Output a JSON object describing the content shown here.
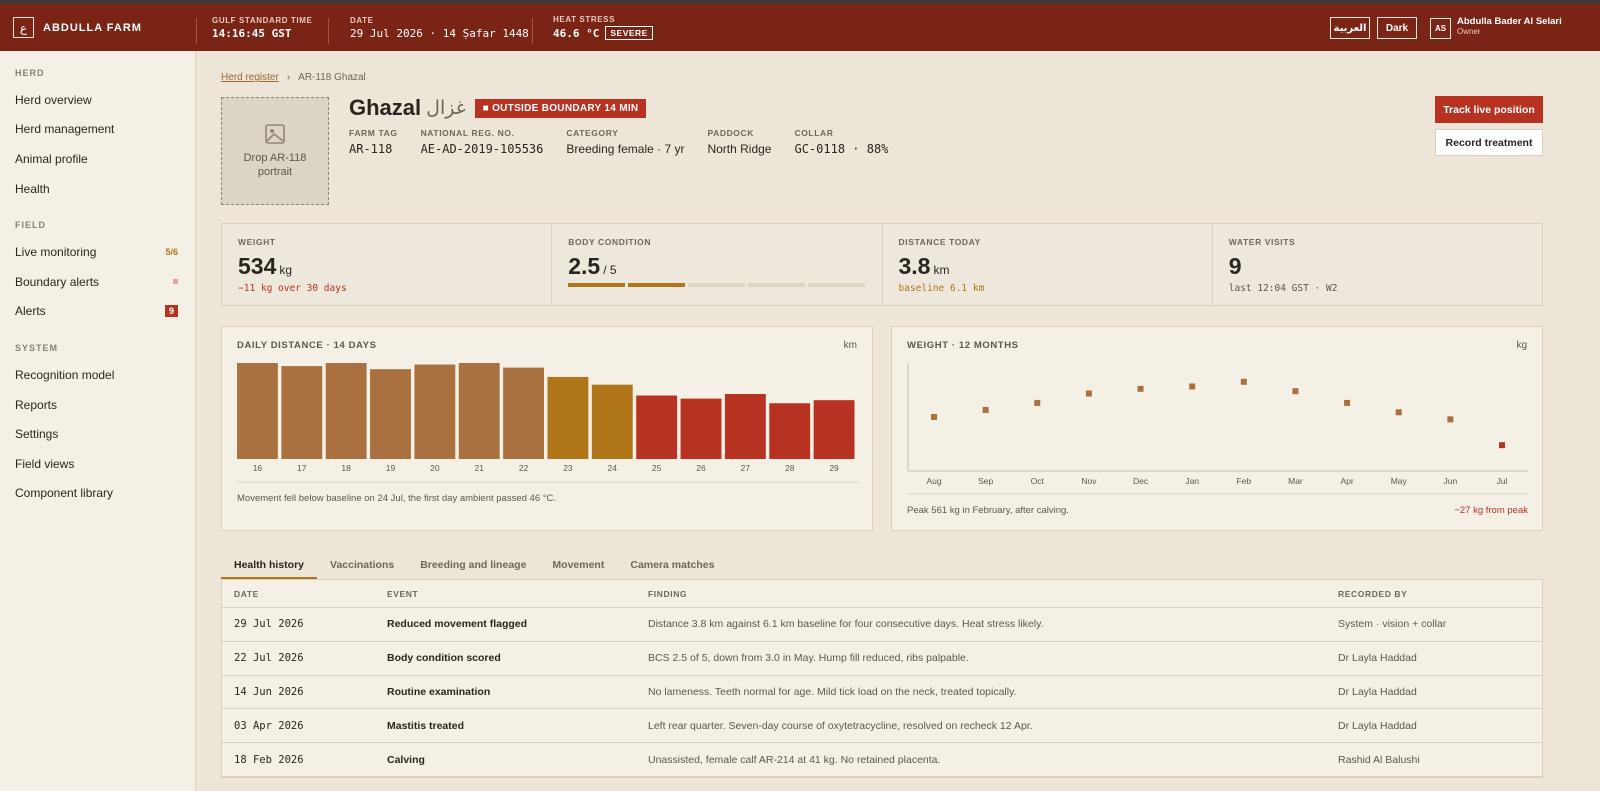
{
  "header": {
    "logo": "ع",
    "farm": "ABDULLA FARM",
    "time_label": "GULF STANDARD TIME",
    "time": "14:16:45 GST",
    "date_label": "DATE",
    "date": "29 Jul 2026 · 14 Ṣafar 1448",
    "heat_label": "HEAT STRESS",
    "heat": "46.6 °C",
    "heat_badge": "SEVERE",
    "language": "العربية",
    "theme": "Dark",
    "avatar": "AS",
    "user": "Abdulla Bader Al Selari",
    "role": "Owner"
  },
  "sidebar": [
    {
      "title": "HERD",
      "items": [
        {
          "label": "Herd overview"
        },
        {
          "label": "Herd management"
        },
        {
          "label": "Animal profile"
        },
        {
          "label": "Health"
        }
      ]
    },
    {
      "title": "FIELD",
      "items": [
        {
          "label": "Live monitoring",
          "badge": "5/6"
        },
        {
          "label": "Boundary alerts"
        },
        {
          "label": "Alerts",
          "badge": "9"
        }
      ]
    },
    {
      "title": "SYSTEM",
      "items": [
        {
          "label": "Recognition model"
        },
        {
          "label": "Reports"
        },
        {
          "label": "Settings"
        },
        {
          "label": "Field views"
        },
        {
          "label": "Component library"
        }
      ]
    }
  ],
  "breadcrumb": [
    "Herd register",
    "AR-118 Ghazal"
  ],
  "portrait": "Drop AR-118 portrait",
  "animal": {
    "name": "Ghazal",
    "name_ar": "غزال",
    "badge": "OUTSIDE BOUNDARY 14 MIN",
    "fields": [
      {
        "label": "FARM TAG",
        "value": "AR-118"
      },
      {
        "label": "NATIONAL REG. NO.",
        "value": "AE-AD-2019-105536"
      },
      {
        "label": "CATEGORY",
        "value": "Breeding female · 7 yr"
      },
      {
        "label": "PADDOCK",
        "value": "North Ridge"
      },
      {
        "label": "COLLAR",
        "value": "GC-0118 · 88%"
      }
    ]
  },
  "actions": [
    "Track live position",
    "Record treatment"
  ],
  "stats": [
    {
      "label": "WEIGHT",
      "value": 534,
      "unit": "kg",
      "note": "−11 kg over 30 days"
    },
    {
      "label": "BODY CONDITION",
      "value": 2.5,
      "unit": "/ 5",
      "max": 5
    },
    {
      "label": "DISTANCE TODAY",
      "value": 3.8,
      "unit": "km",
      "note": "baseline 6.1 km"
    },
    {
      "label": "WATER VISITS",
      "value": 9,
      "note": "last 12:04 GST · W2"
    }
  ],
  "chart_data": [
    {
      "type": "bar",
      "title": "DAILY DISTANCE · 14 DAYS",
      "unit": "km",
      "categories": [
        "16",
        "17",
        "18",
        "19",
        "20",
        "21",
        "22",
        "23",
        "24",
        "25",
        "26",
        "27",
        "28",
        "29"
      ],
      "values": [
        6.2,
        6.0,
        6.2,
        5.8,
        6.1,
        6.2,
        5.9,
        5.3,
        4.8,
        4.1,
        3.9,
        4.2,
        3.6,
        3.8
      ],
      "colors": [
        "#a8713f",
        "#a8713f",
        "#a8713f",
        "#a8713f",
        "#a8713f",
        "#a8713f",
        "#a8713f",
        "#b07518",
        "#b07518",
        "#b83222",
        "#b83222",
        "#b83222",
        "#b83222",
        "#b83222"
      ],
      "ylim": [
        0,
        6.2
      ],
      "note": "Movement fell below baseline on 24 Jul, the first day ambient passed 46 °C."
    },
    {
      "type": "scatter",
      "title": "WEIGHT · 12 MONTHS",
      "unit": "kg",
      "categories": [
        "Aug",
        "Sep",
        "Oct",
        "Nov",
        "Dec",
        "Jan",
        "Feb",
        "Mar",
        "Apr",
        "May",
        "Jun",
        "Jul"
      ],
      "values": [
        546,
        549,
        552,
        556,
        558,
        559,
        561,
        557,
        552,
        548,
        545,
        534
      ],
      "colors": [
        "#a8713f",
        "#a8713f",
        "#a8713f",
        "#a8713f",
        "#a8713f",
        "#a8713f",
        "#a8713f",
        "#a8713f",
        "#a8713f",
        "#a8713f",
        "#a8713f",
        "#b83222"
      ],
      "ylim": [
        523,
        569
      ],
      "note": "Peak 561 kg in February, after calving.",
      "note_right": "−27 kg from peak"
    }
  ],
  "tabs": [
    "Health history",
    "Vaccinations",
    "Breeding and lineage",
    "Movement",
    "Camera matches"
  ],
  "table": {
    "columns": [
      "DATE",
      "EVENT",
      "FINDING",
      "RECORDED BY"
    ],
    "rows": [
      [
        "29 Jul 2026",
        "Reduced movement flagged",
        "Distance 3.8 km against 6.1 km baseline for four consecutive days. Heat stress likely.",
        "System · vision + collar"
      ],
      [
        "22 Jul 2026",
        "Body condition scored",
        "BCS 2.5 of 5, down from 3.0 in May. Hump fill reduced, ribs palpable.",
        "Dr Layla Haddad"
      ],
      [
        "14 Jun 2026",
        "Routine examination",
        "No lameness. Teeth normal for age. Mild tick load on the neck, treated topically.",
        "Dr Layla Haddad"
      ],
      [
        "03 Apr 2026",
        "Mastitis treated",
        "Left rear quarter. Seven-day course of oxytetracycline, resolved on recheck 12 Apr.",
        "Dr Layla Haddad"
      ],
      [
        "18 Feb 2026",
        "Calving",
        "Unassisted, female calf AR-214 at 41 kg. No retained placenta.",
        "Rashid Al Balushi"
      ]
    ]
  }
}
